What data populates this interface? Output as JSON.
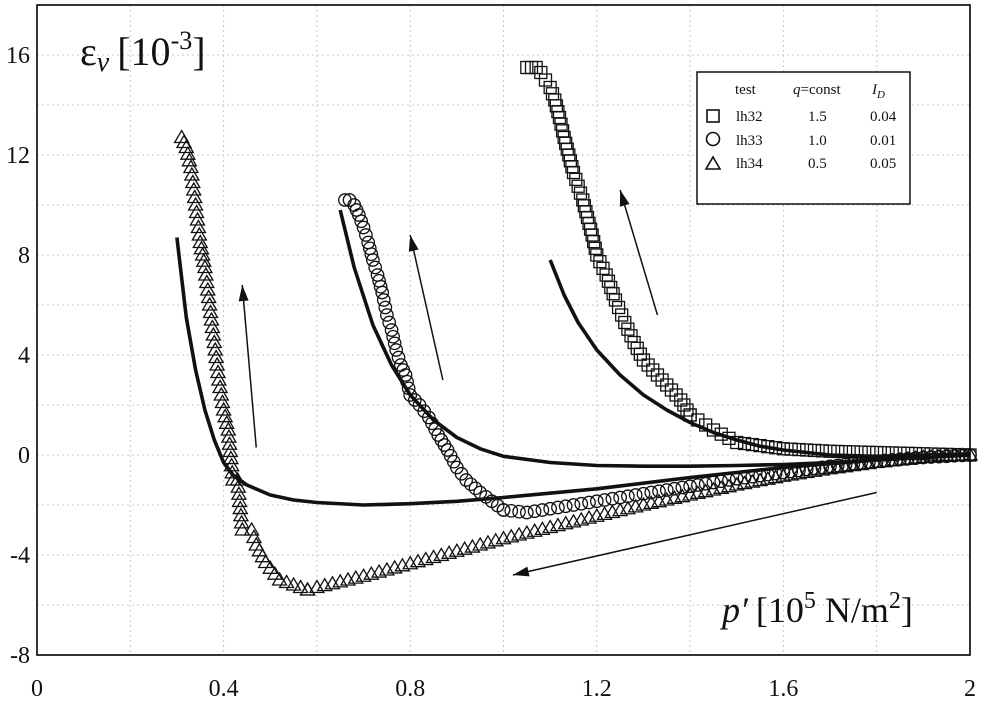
{
  "chart_data": {
    "type": "scatter",
    "xlim": [
      0,
      2
    ],
    "ylim": [
      -8,
      18
    ],
    "x_ticks": [
      "0",
      "0.4",
      "0.8",
      "1.2",
      "1.6",
      "2"
    ],
    "y_ticks": [
      "-8",
      "-4",
      "0",
      "4",
      "8",
      "12",
      "16"
    ],
    "x_tick_values": [
      0,
      0.4,
      0.8,
      1.2,
      1.6,
      2
    ],
    "y_tick_values": [
      -8,
      -4,
      0,
      4,
      8,
      12,
      16
    ],
    "grid": true,
    "ylabel": {
      "symbol": "ε",
      "sub": "v",
      "unit_open": "[10",
      "exp": "-3",
      "unit_close": "]"
    },
    "xlabel": {
      "symbol": "p′",
      "unit_open": "[10",
      "exp": "5",
      "unit_mid": " N/m",
      "exp2": "2",
      "unit_close": "]"
    },
    "legend": {
      "position": "top-right",
      "headers": [
        "test",
        "q=const",
        "I_D"
      ],
      "header_parts": {
        "q": "q",
        "q_rest": "=const",
        "id": "I",
        "id_sub": "D"
      },
      "rows": [
        {
          "marker": "square",
          "test": "lh32",
          "q": "1.5",
          "id": "0.04"
        },
        {
          "marker": "circle",
          "test": "lh33",
          "q": "1.0",
          "id": "0.01"
        },
        {
          "marker": "triangle",
          "test": "lh34",
          "q": "0.5",
          "id": "0.05"
        }
      ]
    },
    "series": [
      {
        "marker": "triangle",
        "loading": {
          "x": [
            2.0,
            1.9,
            1.8,
            1.7,
            1.6,
            1.5,
            1.4,
            1.3,
            1.2,
            1.1,
            1.0,
            0.9,
            0.8,
            0.7,
            0.6,
            0.58
          ],
          "y": [
            0.0,
            -0.1,
            -0.3,
            -0.55,
            -0.85,
            -1.2,
            -1.6,
            -2.0,
            -2.45,
            -2.9,
            -3.35,
            -3.85,
            -4.35,
            -4.85,
            -5.3,
            -5.4
          ]
        },
        "unloading": {
          "x": [
            0.58,
            0.52,
            0.49,
            0.47,
            0.46,
            0.44,
            0.43,
            0.42,
            0.41,
            0.4,
            0.39,
            0.38,
            0.37,
            0.36,
            0.35,
            0.34,
            0.33,
            0.32,
            0.31
          ],
          "y": [
            -5.4,
            -5.0,
            -4.3,
            -3.6,
            -3.0,
            -3.0,
            -1.0,
            -1.0,
            1.0,
            1.8,
            3.0,
            4.5,
            6.0,
            7.5,
            8.5,
            10.0,
            11.5,
            12.3,
            12.7
          ]
        }
      },
      {
        "marker": "circle",
        "loading": {
          "x": [
            2.0,
            1.9,
            1.8,
            1.7,
            1.6,
            1.5,
            1.4,
            1.3,
            1.2,
            1.1,
            1.05,
            1.0
          ],
          "y": [
            0.0,
            -0.1,
            -0.25,
            -0.45,
            -0.7,
            -0.95,
            -1.25,
            -1.55,
            -1.85,
            -2.15,
            -2.3,
            -2.2
          ]
        },
        "unloading": {
          "x": [
            1.0,
            0.95,
            0.92,
            0.9,
            0.88,
            0.86,
            0.84,
            0.82,
            0.8,
            0.79,
            0.78,
            0.77,
            0.76,
            0.75,
            0.74,
            0.73,
            0.72,
            0.71,
            0.7,
            0.69,
            0.68,
            0.67,
            0.66
          ],
          "y": [
            -2.2,
            -1.5,
            -1.0,
            -0.5,
            0.2,
            0.8,
            1.5,
            2.0,
            2.4,
            3.2,
            3.6,
            4.2,
            5.0,
            5.6,
            6.5,
            7.2,
            7.8,
            8.5,
            9.1,
            9.6,
            10.0,
            10.2,
            10.2
          ]
        }
      },
      {
        "marker": "square",
        "loading": {
          "x": [
            2.0,
            1.9,
            1.8,
            1.7,
            1.6,
            1.5,
            1.45,
            1.4
          ],
          "y": [
            0.0,
            0.05,
            0.1,
            0.15,
            0.25,
            0.5,
            1.0,
            1.6
          ]
        },
        "unloading": {
          "x": [
            1.4,
            1.38,
            1.35,
            1.33,
            1.3,
            1.28,
            1.26,
            1.24,
            1.22,
            1.2,
            1.19,
            1.18,
            1.17,
            1.15,
            1.14,
            1.13,
            1.12,
            1.11,
            1.1,
            1.09,
            1.08,
            1.07,
            1.06,
            1.05
          ],
          "y": [
            1.6,
            2.2,
            2.8,
            3.2,
            3.8,
            4.5,
            5.3,
            6.2,
            7.2,
            8.0,
            8.8,
            9.5,
            10.2,
            11.3,
            12.0,
            12.7,
            13.5,
            14.2,
            14.7,
            15.0,
            15.3,
            15.5,
            15.5,
            15.5
          ]
        }
      }
    ],
    "model_curves": [
      {
        "x": [
          0.3,
          0.32,
          0.34,
          0.36,
          0.38,
          0.4,
          0.42,
          0.45,
          0.5,
          0.55,
          0.6,
          0.7,
          0.8,
          0.9,
          1.0,
          1.2,
          1.4,
          1.6,
          1.8,
          2.0
        ],
        "y": [
          8.7,
          5.5,
          3.4,
          1.8,
          0.6,
          -0.3,
          -0.8,
          -1.2,
          -1.6,
          -1.8,
          -1.9,
          -2.0,
          -1.95,
          -1.85,
          -1.7,
          -1.35,
          -0.9,
          -0.5,
          -0.2,
          0.0
        ]
      },
      {
        "x": [
          0.65,
          0.68,
          0.72,
          0.76,
          0.8,
          0.85,
          0.9,
          0.95,
          1.0,
          1.1,
          1.2,
          1.3,
          1.4,
          1.5,
          1.6,
          1.7,
          1.8,
          1.9,
          2.0
        ],
        "y": [
          9.8,
          7.5,
          5.2,
          3.6,
          2.4,
          1.4,
          0.7,
          0.25,
          -0.05,
          -0.3,
          -0.42,
          -0.45,
          -0.45,
          -0.42,
          -0.38,
          -0.3,
          -0.2,
          -0.1,
          0.0
        ]
      },
      {
        "x": [
          1.1,
          1.13,
          1.16,
          1.2,
          1.25,
          1.3,
          1.35,
          1.4,
          1.45,
          1.5,
          1.55,
          1.6,
          1.7,
          1.8,
          1.9,
          2.0
        ],
        "y": [
          7.8,
          6.4,
          5.3,
          4.2,
          3.2,
          2.4,
          1.8,
          1.3,
          0.9,
          0.6,
          0.35,
          0.2,
          0.0,
          -0.05,
          0.0,
          0.05
        ]
      }
    ],
    "arrows": [
      {
        "from": [
          1.8,
          -1.5
        ],
        "to": [
          1.02,
          -4.8
        ]
      },
      {
        "from": [
          0.47,
          0.3
        ],
        "to": [
          0.44,
          6.8
        ]
      },
      {
        "from": [
          0.87,
          3.0
        ],
        "to": [
          0.8,
          8.8
        ]
      },
      {
        "from": [
          1.33,
          5.6
        ],
        "to": [
          1.25,
          10.6
        ]
      }
    ]
  }
}
